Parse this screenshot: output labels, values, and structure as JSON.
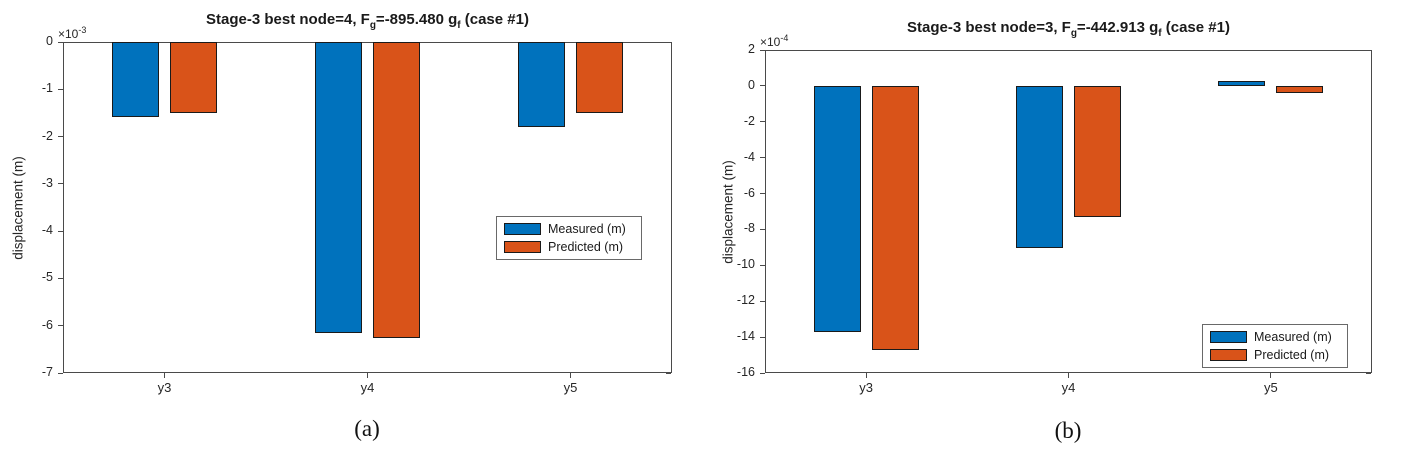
{
  "figure": {
    "captions": [
      "(a)",
      "(b)"
    ],
    "background": "#ffffff"
  },
  "colors": {
    "measured_blue": "#0072BD",
    "predicted_orange": "#D95319",
    "axis": "#4a4a4a",
    "grid": "#c9c9c9",
    "zero_line": "#808080"
  },
  "chart_data": [
    {
      "type": "bar",
      "title": "Stage-3 best node=4, Fg=-895.480 gf (case #1)",
      "title_segments": [
        {
          "t": "Stage-3 best node=4, F"
        },
        {
          "sub": "g"
        },
        {
          "t": "=-895.480 g"
        },
        {
          "sub": "f"
        },
        {
          "t": " (case #1)"
        }
      ],
      "scale_label": {
        "prefix": "×10",
        "exponent": "-3"
      },
      "value_scale": "1e-3",
      "ylabel": "displacement (m)",
      "xlabel": "",
      "categories": [
        "y3",
        "y4",
        "y5"
      ],
      "series": [
        {
          "name": "Measured (m)",
          "color": "#0072BD",
          "values": [
            -1.58,
            -6.15,
            -1.8
          ]
        },
        {
          "name": "Predicted (m)",
          "color": "#D95319",
          "values": [
            -1.5,
            -6.27,
            -1.5
          ]
        }
      ],
      "ylim": [
        -7,
        0
      ],
      "yticks": [
        0,
        -1,
        -2,
        -3,
        -4,
        -5,
        -6,
        -7
      ],
      "grid": true,
      "legend_entries": [
        "Measured (m)",
        "Predicted (m)"
      ],
      "legend_position": "middle-right"
    },
    {
      "type": "bar",
      "title": "Stage-3 best node=3, Fg=-442.913 gf (case #1)",
      "title_segments": [
        {
          "t": "Stage-3 best node=3, F"
        },
        {
          "sub": "g"
        },
        {
          "t": "=-442.913 g"
        },
        {
          "sub": "f"
        },
        {
          "t": " (case #1)"
        }
      ],
      "scale_label": {
        "prefix": "×10",
        "exponent": "-4"
      },
      "value_scale": "1e-4",
      "ylabel": "displacement (m)",
      "xlabel": "",
      "categories": [
        "y3",
        "y4",
        "y5"
      ],
      "series": [
        {
          "name": "Measured (m)",
          "color": "#0072BD",
          "values": [
            -13.7,
            -9.05,
            0.3
          ]
        },
        {
          "name": "Predicted (m)",
          "color": "#D95319",
          "values": [
            -14.7,
            -7.3,
            -0.4
          ]
        }
      ],
      "ylim": [
        -16,
        2
      ],
      "yticks": [
        2,
        0,
        -2,
        -4,
        -6,
        -8,
        -10,
        -12,
        -14,
        -16
      ],
      "grid": true,
      "legend_entries": [
        "Measured (m)",
        "Predicted (m)"
      ],
      "legend_position": "bottom-right"
    }
  ]
}
